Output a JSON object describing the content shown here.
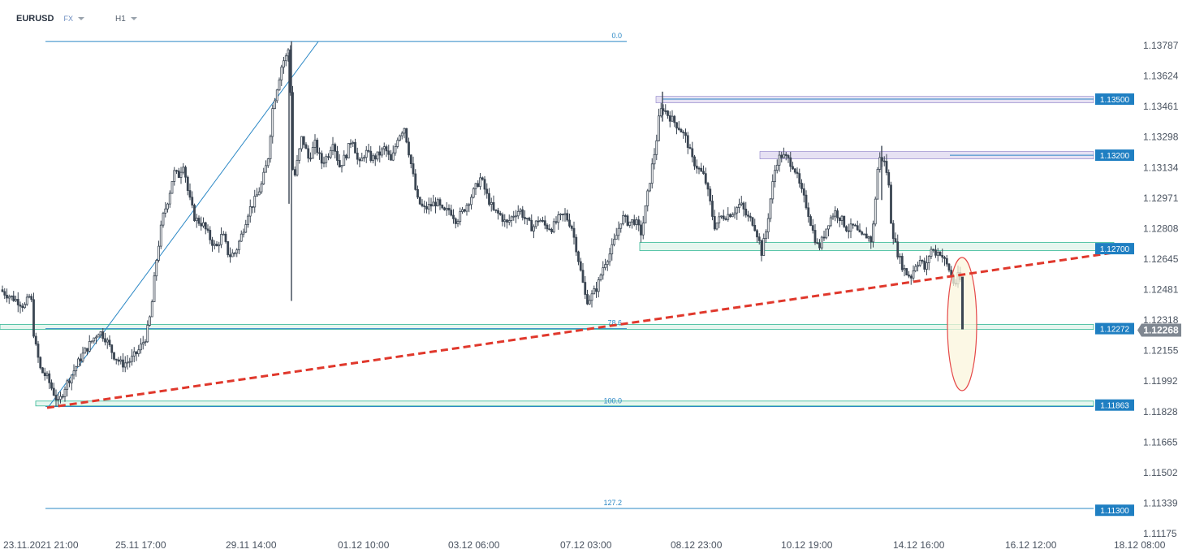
{
  "toolbar": {
    "symbol": "EURUSD",
    "market": "FX",
    "timeframe": "H1"
  },
  "colors": {
    "candle": "#3a4552",
    "level_line": "#2a87c5",
    "level_label_bg": "#1f7fc2",
    "current_label_bg": "#7f8791",
    "fib_band": "#35b896",
    "zone_fill": "#e6e1f3",
    "trend_dash": "#e0382c",
    "ellipse_stroke": "#e54848",
    "ellipse_fill": "#fbf6dc",
    "axis_text": "#4a5360"
  },
  "chart_data": {
    "type": "candlestick",
    "symbol": "EURUSD",
    "timeframe": "H1",
    "x_ticks": [
      "23.11.2021  21:00",
      "25.11  17:00",
      "29.11  14:00",
      "01.12  10:00",
      "03.12  06:00",
      "07.12  03:00",
      "08.12  23:00",
      "10.12  19:00",
      "14.12  16:00",
      "16.12  12:00",
      "18.12  08:00"
    ],
    "y_ticks": [
      "1.13787",
      "1.13624",
      "1.13461",
      "1.13298",
      "1.13134",
      "1.12971",
      "1.12808",
      "1.12645",
      "1.12481",
      "1.12318",
      "1.12155",
      "1.11992",
      "1.11828",
      "1.11665",
      "1.11502",
      "1.11339",
      "1.11175"
    ],
    "ylim": [
      1.1112,
      1.1384
    ],
    "price_labels": [
      "1.13500",
      "1.13200",
      "1.12700",
      "1.12272",
      "1.11863",
      "1.11300"
    ],
    "current_price": "1.12268",
    "fib_labels": [
      "0.0",
      "78.6",
      "100.0",
      "127.2"
    ],
    "fibonacci": [
      {
        "level": "0.0",
        "price": 1.13808
      },
      {
        "level": "78.6",
        "price": 1.12272
      },
      {
        "level": "100.0",
        "price": 1.11855
      },
      {
        "level": "127.2",
        "price": 1.1131
      }
    ],
    "resistance_zones": [
      {
        "label": "1.13500",
        "top": 1.13515,
        "bottom": 1.13485
      },
      {
        "label": "1.13200",
        "top": 1.1322,
        "bottom": 1.1318
      }
    ],
    "support_zones": [
      {
        "label": "1.12700",
        "top": 1.1272,
        "bottom": 1.1268
      },
      {
        "label": "1.12272",
        "top": 1.1229,
        "bottom": 1.1225
      },
      {
        "label": "1.11863",
        "top": 1.1188,
        "bottom": 1.1185
      }
    ],
    "trendline": {
      "style": "dashed",
      "from": {
        "time": "23.11.2021 21:00",
        "price": 1.11862
      },
      "to": {
        "time": "18.12 08:00",
        "price": 1.12702
      }
    },
    "highlight": "ellipse around latest bearish candle near 1.12268",
    "close_path": [
      [
        0,
        1.1248
      ],
      [
        10,
        1.1245
      ],
      [
        22,
        1.1242
      ],
      [
        30,
        1.1239
      ],
      [
        38,
        1.1246
      ],
      [
        42,
        1.1222
      ],
      [
        50,
        1.1205
      ],
      [
        58,
        1.1201
      ],
      [
        66,
        1.1193
      ],
      [
        72,
        1.1187
      ],
      [
        80,
        1.1196
      ],
      [
        90,
        1.1204
      ],
      [
        100,
        1.1212
      ],
      [
        112,
        1.122
      ],
      [
        122,
        1.1226
      ],
      [
        130,
        1.1222
      ],
      [
        140,
        1.1213
      ],
      [
        150,
        1.1208
      ],
      [
        160,
        1.121
      ],
      [
        170,
        1.1215
      ],
      [
        180,
        1.1223
      ],
      [
        186,
        1.1236
      ],
      [
        192,
        1.1262
      ],
      [
        200,
        1.1286
      ],
      [
        208,
        1.1298
      ],
      [
        214,
        1.1311
      ],
      [
        220,
        1.1309
      ],
      [
        226,
        1.1316
      ],
      [
        232,
        1.1299
      ],
      [
        240,
        1.1286
      ],
      [
        250,
        1.1283
      ],
      [
        258,
        1.1276
      ],
      [
        266,
        1.127
      ],
      [
        274,
        1.1278
      ],
      [
        282,
        1.1266
      ],
      [
        290,
        1.1268
      ],
      [
        298,
        1.1278
      ],
      [
        306,
        1.129
      ],
      [
        314,
        1.1296
      ],
      [
        322,
        1.1304
      ],
      [
        330,
        1.1318
      ],
      [
        336,
        1.1346
      ],
      [
        342,
        1.1358
      ],
      [
        348,
        1.137
      ],
      [
        352,
        1.1372
      ],
      [
        356,
        1.1378
      ],
      [
        359,
        1.1338
      ],
      [
        361,
        1.1304
      ],
      [
        366,
        1.1316
      ],
      [
        372,
        1.133
      ],
      [
        380,
        1.1318
      ],
      [
        388,
        1.1326
      ],
      [
        396,
        1.1316
      ],
      [
        404,
        1.132
      ],
      [
        410,
        1.1328
      ],
      [
        418,
        1.1314
      ],
      [
        426,
        1.132
      ],
      [
        434,
        1.133
      ],
      [
        442,
        1.1314
      ],
      [
        450,
        1.1322
      ],
      [
        458,
        1.1318
      ],
      [
        466,
        1.132
      ],
      [
        474,
        1.1324
      ],
      [
        482,
        1.1316
      ],
      [
        490,
        1.133
      ],
      [
        498,
        1.1335
      ],
      [
        506,
        1.1316
      ],
      [
        514,
        1.1296
      ],
      [
        522,
        1.1291
      ],
      [
        530,
        1.1293
      ],
      [
        538,
        1.1295
      ],
      [
        546,
        1.1289
      ],
      [
        554,
        1.1291
      ],
      [
        562,
        1.1285
      ],
      [
        570,
        1.129
      ],
      [
        578,
        1.1296
      ],
      [
        584,
        1.1301
      ],
      [
        592,
        1.1308
      ],
      [
        600,
        1.1298
      ],
      [
        608,
        1.129
      ],
      [
        616,
        1.1288
      ],
      [
        624,
        1.1283
      ],
      [
        632,
        1.1288
      ],
      [
        640,
        1.1291
      ],
      [
        648,
        1.1285
      ],
      [
        656,
        1.1281
      ],
      [
        664,
        1.1286
      ],
      [
        672,
        1.1282
      ],
      [
        680,
        1.1281
      ],
      [
        688,
        1.1286
      ],
      [
        696,
        1.1288
      ],
      [
        704,
        1.1282
      ],
      [
        710,
        1.127
      ],
      [
        716,
        1.1256
      ],
      [
        722,
        1.1242
      ],
      [
        728,
        1.1244
      ],
      [
        736,
        1.125
      ],
      [
        744,
        1.1262
      ],
      [
        752,
        1.1268
      ],
      [
        760,
        1.1278
      ],
      [
        766,
        1.1287
      ],
      [
        774,
        1.1284
      ],
      [
        782,
        1.1285
      ],
      [
        790,
        1.1278
      ],
      [
        796,
        1.1294
      ],
      [
        802,
        1.1311
      ],
      [
        808,
        1.1326
      ],
      [
        812,
        1.1341
      ],
      [
        816,
        1.1346
      ],
      [
        822,
        1.1342
      ],
      [
        830,
        1.1338
      ],
      [
        838,
        1.1334
      ],
      [
        846,
        1.1328
      ],
      [
        852,
        1.1318
      ],
      [
        860,
        1.1313
      ],
      [
        868,
        1.1308
      ],
      [
        874,
        1.1296
      ],
      [
        880,
        1.1282
      ],
      [
        888,
        1.1287
      ],
      [
        896,
        1.1288
      ],
      [
        904,
        1.129
      ],
      [
        912,
        1.1294
      ],
      [
        920,
        1.1287
      ],
      [
        928,
        1.1284
      ],
      [
        934,
        1.1276
      ],
      [
        938,
        1.1268
      ],
      [
        944,
        1.128
      ],
      [
        950,
        1.13
      ],
      [
        956,
        1.1316
      ],
      [
        962,
        1.132
      ],
      [
        970,
        1.1318
      ],
      [
        978,
        1.1314
      ],
      [
        986,
        1.1302
      ],
      [
        994,
        1.1292
      ],
      [
        1002,
        1.1278
      ],
      [
        1008,
        1.127
      ],
      [
        1014,
        1.1276
      ],
      [
        1020,
        1.1284
      ],
      [
        1028,
        1.129
      ],
      [
        1036,
        1.1286
      ],
      [
        1044,
        1.128
      ],
      [
        1052,
        1.1282
      ],
      [
        1060,
        1.1276
      ],
      [
        1068,
        1.1277
      ],
      [
        1074,
        1.1274
      ],
      [
        1078,
        1.1296
      ],
      [
        1082,
        1.1318
      ],
      [
        1088,
        1.1318
      ],
      [
        1094,
        1.1308
      ],
      [
        1098,
        1.1282
      ],
      [
        1104,
        1.127
      ],
      [
        1110,
        1.1262
      ],
      [
        1116,
        1.1257
      ],
      [
        1122,
        1.1255
      ],
      [
        1128,
        1.1262
      ],
      [
        1134,
        1.1264
      ],
      [
        1140,
        1.1258
      ],
      [
        1146,
        1.127
      ],
      [
        1152,
        1.1268
      ],
      [
        1158,
        1.1268
      ],
      [
        1164,
        1.1263
      ],
      [
        1170,
        1.1258
      ],
      [
        1176,
        1.125
      ],
      [
        1180,
        1.1255
      ],
      [
        1184,
        1.1252
      ],
      [
        1186,
        1.12268
      ]
    ]
  }
}
